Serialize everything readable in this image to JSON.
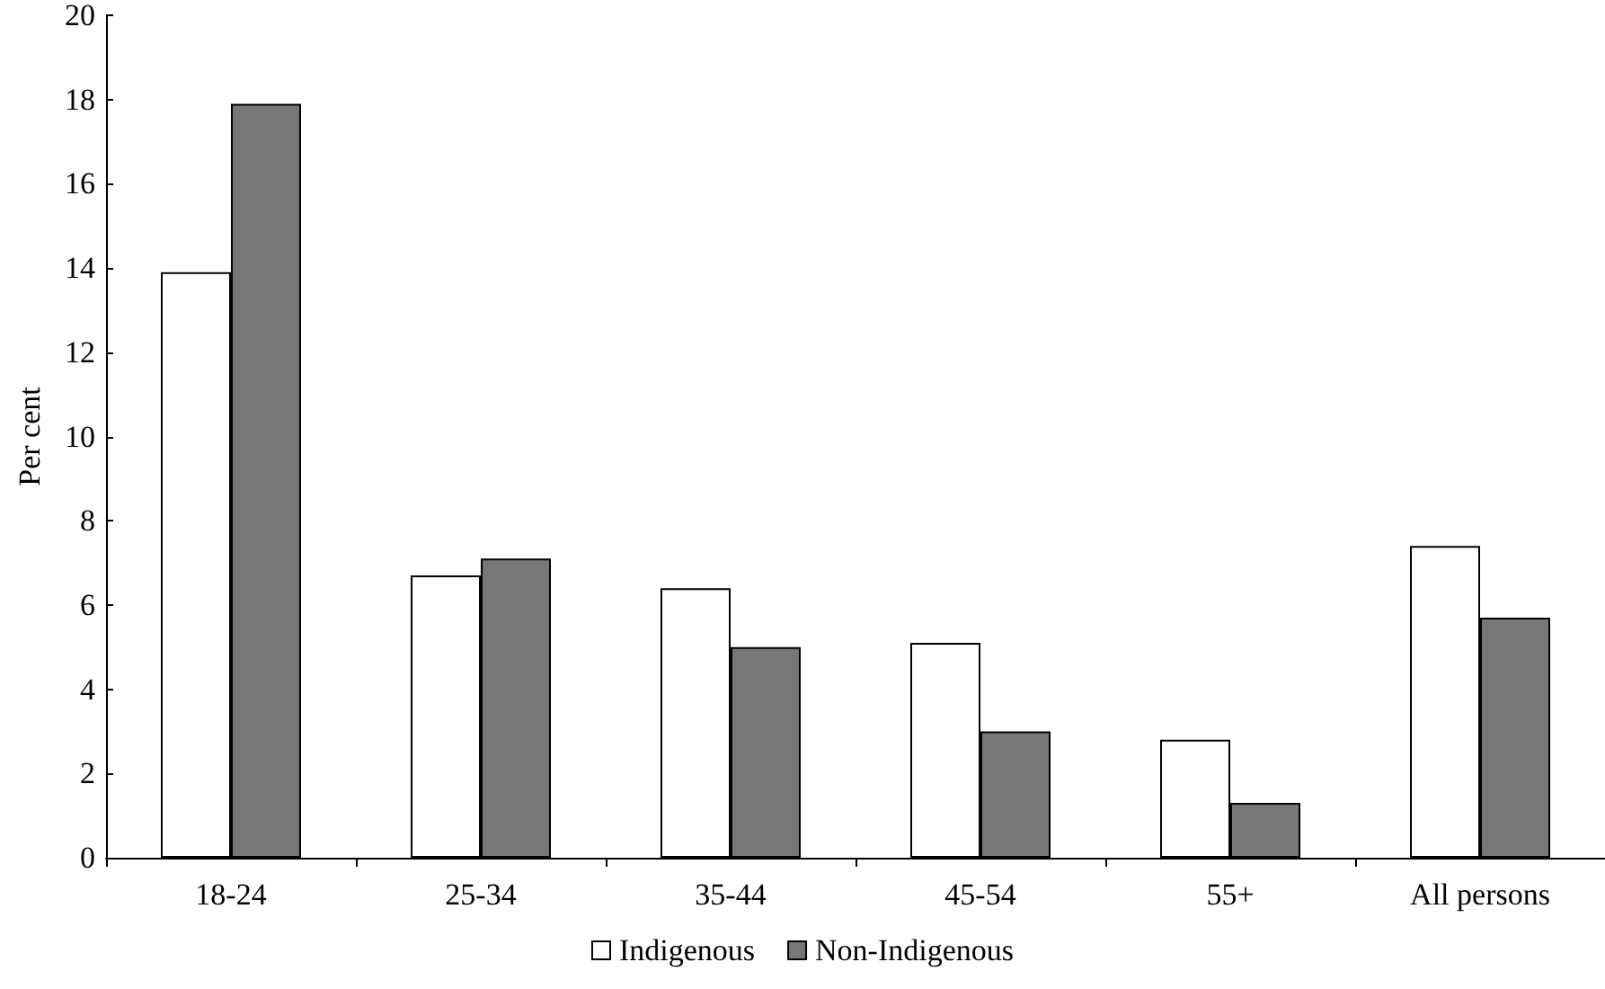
{
  "chart_data": {
    "type": "bar",
    "ylabel": "Per cent",
    "categories": [
      "18-24",
      "25-34",
      "35-44",
      "45-54",
      "55+",
      "All persons"
    ],
    "series": [
      {
        "name": "Indigenous",
        "color": "#ffffff",
        "values": [
          13.9,
          6.7,
          6.4,
          5.1,
          2.8,
          7.4
        ]
      },
      {
        "name": "Non-Indigenous",
        "color": "#777777",
        "values": [
          17.9,
          7.1,
          5.0,
          3.0,
          1.3,
          5.7
        ]
      }
    ],
    "ylim": [
      0,
      20
    ],
    "yticks": [
      0,
      2,
      4,
      6,
      8,
      10,
      12,
      14,
      16,
      18,
      20
    ],
    "grid": false,
    "legend": "bottom"
  }
}
